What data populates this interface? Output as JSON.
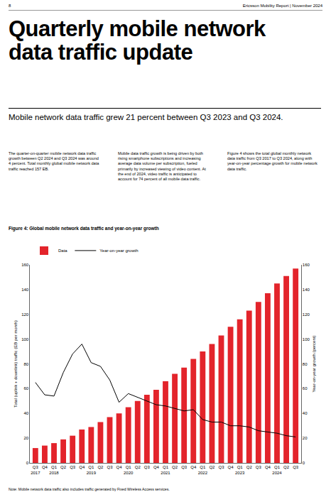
{
  "page": {
    "header_left": "8",
    "header_right": "Ericsson Mobility Report | November 2024",
    "title_lines": [
      "Quarterly mobile network",
      "data traffic update"
    ],
    "subtitle": "Mobile network data traffic grew 21 percent between Q3 2023 and Q3 2024.",
    "columns": [
      "The quarter-on-quarter mobile network data traffic growth between Q2 2024 and Q3 2024 was around 4 percent. Total monthly global mobile network data traffic reached 157 EB.",
      "Mobile data traffic growth is being driven by both rising smartphone subscriptions and increasing average data volume per subscription, fueled primarily by increased viewing of video content. At the end of 2024, video traffic is anticipated to account for 74 percent of all mobile data traffic.",
      "Figure 4 shows the total global monthly network data traffic from Q3 2017 to Q3 2024, along with year-on-year percentage growth for mobile network data traffic."
    ],
    "note": "Note: Mobile network data traffic also includes traffic generated by Fixed Wireless Access services."
  },
  "chart_data": {
    "type": "bar",
    "title": "Figure 4: Global mobile network data traffic and year-on-year growth",
    "y_label": "Total (uplink + downlink) traffic (EB per month)",
    "y2_label": "Year-on-year growth (percent)",
    "categories": [
      "Q3 2017",
      "Q4",
      "Q1 2018",
      "Q2",
      "Q3",
      "Q4",
      "Q1 2019",
      "Q2",
      "Q3",
      "Q4",
      "Q1 2020",
      "Q2",
      "Q3",
      "Q4",
      "Q1 2021",
      "Q2",
      "Q3",
      "Q4",
      "Q1 2022",
      "Q2",
      "Q3",
      "Q4",
      "Q1 2023",
      "Q2",
      "Q3",
      "Q4",
      "Q1 2024",
      "Q2",
      "Q3"
    ],
    "series": [
      {
        "name": "Data",
        "type": "bar",
        "color": "#e3242b",
        "values": [
          12,
          14,
          16,
          19,
          22,
          27,
          29,
          33,
          37,
          40,
          45,
          50,
          55,
          59,
          66,
          72,
          77,
          84,
          90,
          96,
          103,
          110,
          116,
          123,
          130,
          137,
          145,
          151,
          157
        ]
      },
      {
        "name": "Year-on-year growth",
        "type": "line",
        "color": "#000000",
        "axis": "y2",
        "line_style": "solid",
        "values": [
          65,
          55,
          54,
          73,
          88,
          96,
          81,
          78,
          67,
          49,
          56,
          53,
          50,
          47,
          46,
          44,
          42,
          43,
          35,
          33,
          33,
          30,
          30,
          29,
          26,
          25,
          24,
          22,
          21
        ]
      }
    ],
    "ylim": [
      0,
      160
    ],
    "yticks": [
      0,
      20,
      40,
      60,
      80,
      100,
      120,
      140,
      160
    ],
    "y2lim": [
      0,
      160
    ],
    "y2ticks": [
      0,
      20,
      40,
      60,
      80,
      100,
      120,
      140,
      160
    ],
    "grid": false,
    "legend": "top left"
  }
}
